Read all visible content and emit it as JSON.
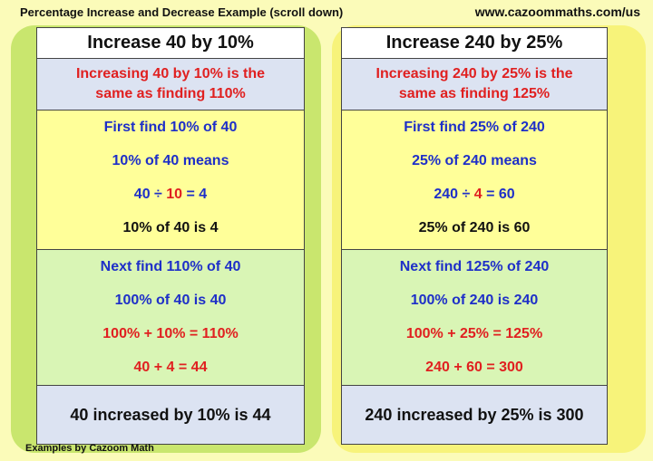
{
  "header": {
    "title": "Percentage Increase and Decrease Example (scroll down)",
    "website": "www.cazoommaths.com/us"
  },
  "footer": {
    "credit": "Examples by Cazoom Math"
  },
  "examples": [
    {
      "title": "Increase 40 by 10%",
      "note_line1": "Increasing 40 by 10% is the",
      "note_line2": "same as finding 110%",
      "step1": {
        "l1": "First find 10% of 40",
        "l2": "10% of 40 means",
        "l3_a": "40 ÷ ",
        "l3_b": "10",
        "l3_c": " = 4",
        "l4": "10% of 40 is 4"
      },
      "step2": {
        "l1": "Next find 110% of 40",
        "l2": "100% of 40 is 40",
        "l3": "100% + 10% = 110%",
        "l4": "40 + 4 = 44"
      },
      "result": "40 increased by 10% is 44"
    },
    {
      "title": "Increase 240 by 25%",
      "note_line1": "Increasing 240 by 25% is the",
      "note_line2": "same as finding 125%",
      "step1": {
        "l1": "First find 25% of 240",
        "l2": "25% of 240 means",
        "l3_a": "240 ÷ ",
        "l3_b": "4",
        "l3_c": " = 60",
        "l4": "25% of 240 is 60"
      },
      "step2": {
        "l1": "Next find 125% of 240",
        "l2": "100% of 240 is 240",
        "l3": "100% + 25% = 125%",
        "l4": "240 + 60 = 300"
      },
      "result": "240 increased by 25% is 300"
    }
  ]
}
